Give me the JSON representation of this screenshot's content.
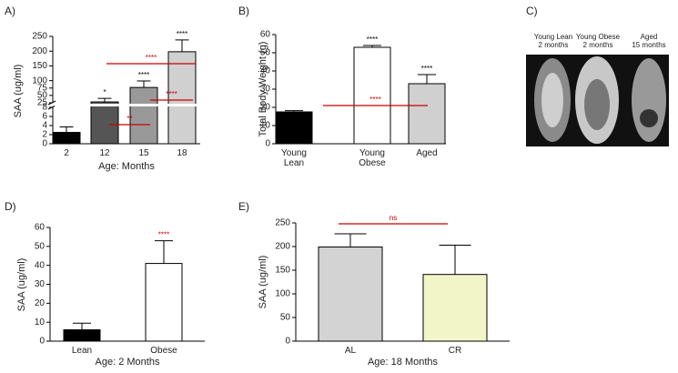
{
  "chart_data": [
    {
      "type": "bar",
      "panel_label": "A)",
      "categories": [
        "2",
        "12",
        "15",
        "18"
      ],
      "values": [
        2.5,
        28,
        77,
        198
      ],
      "errors": [
        1.2,
        12,
        22,
        40
      ],
      "colors": [
        "#000000",
        "#555555",
        "#999999",
        "#d0d0d0"
      ],
      "significance": [
        null,
        "*",
        "****",
        "****"
      ],
      "significance_color": "#000000",
      "comparisons": [
        {
          "label": "****",
          "color": "#cc0000"
        },
        {
          "label": "****",
          "color": "#cc0000"
        },
        {
          "label": "**",
          "color": "#cc0000"
        }
      ],
      "x_label": "Age: Months",
      "y_label": "SAA (ug/ml)",
      "y_segments": [
        {
          "ylim": [
            0,
            8
          ],
          "yticks": [
            0,
            2,
            4,
            6,
            8
          ]
        },
        {
          "ylim": [
            25,
            250
          ],
          "yticks": [
            25,
            50,
            75,
            100,
            150,
            200,
            250
          ]
        }
      ]
    },
    {
      "type": "bar",
      "panel_label": "B)",
      "categories": [
        "Young\nLean",
        "Young\nObese",
        "Aged"
      ],
      "values": [
        17.5,
        53,
        33
      ],
      "errors": [
        0.7,
        1,
        5
      ],
      "colors": [
        "#000000",
        "#ffffff",
        "#d0d0d0"
      ],
      "significance": [
        null,
        "****",
        "****"
      ],
      "significance_color": "#000000",
      "comparisons": [
        {
          "label": "****",
          "color": "#cc0000"
        }
      ],
      "y_label": "Total Body Weight (g)",
      "ylim": [
        0,
        60
      ],
      "yticks": [
        0,
        10,
        20,
        30,
        40,
        50,
        60
      ]
    },
    {
      "type": "bar",
      "panel_label": "D)",
      "categories": [
        "Lean",
        "Obese"
      ],
      "values": [
        6,
        41
      ],
      "errors": [
        3.5,
        12
      ],
      "colors": [
        "#000000",
        "#ffffff"
      ],
      "significance": [
        null,
        "****"
      ],
      "significance_color": "#cc0000",
      "comparisons": [],
      "x_label": "Age: 2 Months",
      "y_label": "SAA (ug/ml)",
      "ylim": [
        0,
        60
      ],
      "yticks": [
        0,
        10,
        20,
        30,
        40,
        50,
        60
      ]
    },
    {
      "type": "bar",
      "panel_label": "E)",
      "categories": [
        "AL",
        "CR"
      ],
      "values": [
        199,
        141
      ],
      "errors": [
        28,
        62
      ],
      "colors": [
        "#d3d3d3",
        "#f2f5c8"
      ],
      "significance": [
        null,
        null
      ],
      "significance_color": "#000000",
      "comparisons": [
        {
          "label": "ns",
          "color": "#cc0000"
        }
      ],
      "x_label": "Age: 18 Months",
      "y_label": "SAA (ug/ml)",
      "ylim": [
        0,
        250
      ],
      "yticks": [
        0,
        50,
        100,
        150,
        200,
        250
      ]
    }
  ],
  "image_panel": {
    "panel_label": "C)",
    "captions": [
      "Young Lean\n2 months",
      "Young Obese\n2 months",
      "Aged\n15 months"
    ]
  }
}
